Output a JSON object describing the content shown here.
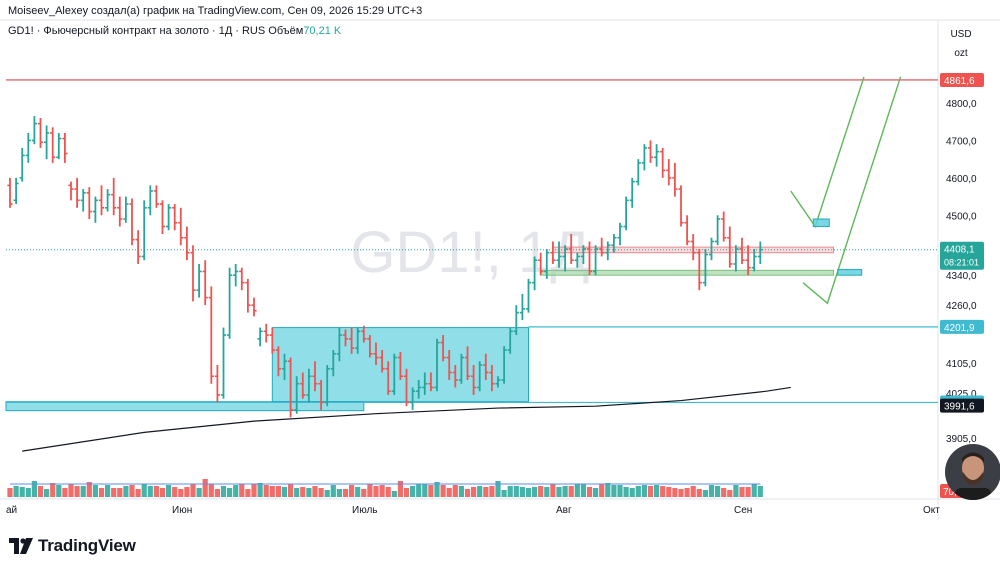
{
  "header": {
    "attribution": "Moiseev_Alexey создал(а) график на TradingView.com, Сен 09, 2026 15:29 UTC+3"
  },
  "legend": {
    "symbol": "GD1!",
    "description": "Фьючерсный контракт на золото",
    "interval": "1Д",
    "exchange": "RUS",
    "volume_label": "Объём",
    "volume_value": "70,21 K"
  },
  "currency": {
    "code": "USD",
    "unit": "ozt"
  },
  "watermark": "GD1!, 1Д",
  "footer": {
    "brand": "TradingView"
  },
  "colors": {
    "up": "#26a69a",
    "down": "#ef5350",
    "zone_cyan": "#5fd0de",
    "zone_pink": "#f8c8cc",
    "zone_green": "#a5d6a7",
    "trend_line": "#5fb858",
    "resistance_line": "#d64550"
  },
  "chart_data": {
    "type": "ohlc",
    "symbol": "GD1!",
    "interval": "1Д",
    "ylim": [
      3860,
      4900
    ],
    "x_labels": [
      "ай",
      "Июн",
      "Июль",
      "Авг",
      "Сен",
      "Окт"
    ],
    "y_ticks": [
      "4800,0",
      "4700,0",
      "4600,0",
      "4500,0",
      "4340,0",
      "4260,0",
      "4105,0",
      "4025,0",
      "3905,0"
    ],
    "price_labels": [
      {
        "text": "4861,6",
        "value": 4861.6,
        "style": "red"
      },
      {
        "text": "4408,1",
        "sub": "08:21:01",
        "value": 4408.1,
        "style": "green"
      },
      {
        "text": "4201,9",
        "value": 4201.9,
        "style": "cyan"
      },
      {
        "text": "4000,0",
        "value": 4000.0,
        "style": "cyan"
      },
      {
        "text": "3991,6",
        "value": 3991.6,
        "style": "black"
      }
    ],
    "volume_label": "70,",
    "bars": [
      [
        4580,
        4600,
        4520,
        4530
      ],
      [
        4540,
        4600,
        4530,
        4585
      ],
      [
        4600,
        4680,
        4590,
        4660
      ],
      [
        4660,
        4720,
        4640,
        4700
      ],
      [
        4700,
        4765,
        4690,
        4745
      ],
      [
        4745,
        4760,
        4680,
        4695
      ],
      [
        4695,
        4740,
        4650,
        4720
      ],
      [
        4720,
        4735,
        4640,
        4655
      ],
      [
        4655,
        4720,
        4650,
        4705
      ],
      [
        4705,
        4720,
        4640,
        4665
      ],
      [
        4580,
        4590,
        4540,
        4570
      ],
      [
        4570,
        4600,
        4520,
        4540
      ],
      [
        4540,
        4570,
        4510,
        4560
      ],
      [
        4560,
        4575,
        4490,
        4510
      ],
      [
        4510,
        4550,
        4480,
        4540
      ],
      [
        4540,
        4580,
        4500,
        4520
      ],
      [
        4520,
        4570,
        4510,
        4555
      ],
      [
        4555,
        4600,
        4500,
        4520
      ],
      [
        4520,
        4550,
        4470,
        4490
      ],
      [
        4490,
        4550,
        4480,
        4530
      ],
      [
        4530,
        4545,
        4420,
        4435
      ],
      [
        4435,
        4460,
        4370,
        4390
      ],
      [
        4390,
        4540,
        4380,
        4520
      ],
      [
        4520,
        4580,
        4500,
        4565
      ],
      [
        4565,
        4580,
        4520,
        4530
      ],
      [
        4530,
        4540,
        4450,
        4470
      ],
      [
        4470,
        4530,
        4460,
        4520
      ],
      [
        4520,
        4530,
        4460,
        4480
      ],
      [
        4480,
        4520,
        4420,
        4440
      ],
      [
        4440,
        4470,
        4380,
        4400
      ],
      [
        4400,
        4420,
        4270,
        4300
      ],
      [
        4300,
        4370,
        4280,
        4350
      ],
      [
        4350,
        4380,
        4260,
        4280
      ],
      [
        4280,
        4310,
        4050,
        4070
      ],
      [
        4070,
        4100,
        4000,
        4020
      ],
      [
        4020,
        4200,
        4010,
        4180
      ],
      [
        4180,
        4360,
        4170,
        4340
      ],
      [
        4340,
        4370,
        4310,
        4350
      ],
      [
        4350,
        4360,
        4300,
        4320
      ],
      [
        4320,
        4330,
        4240,
        4260
      ],
      [
        4260,
        4280,
        4230,
        4245
      ],
      [
        4170,
        4200,
        4150,
        4190
      ],
      [
        4190,
        4210,
        4160,
        4180
      ],
      [
        4180,
        4200,
        4130,
        4140
      ],
      [
        4140,
        4150,
        4070,
        4090
      ],
      [
        4090,
        4130,
        4060,
        4110
      ],
      [
        4110,
        4120,
        3960,
        3980
      ],
      [
        3980,
        4070,
        3970,
        4050
      ],
      [
        4050,
        4080,
        4010,
        4020
      ],
      [
        4020,
        4090,
        4000,
        4070
      ],
      [
        4070,
        4110,
        4030,
        4050
      ],
      [
        4050,
        4060,
        3980,
        4000
      ],
      [
        4000,
        4100,
        3990,
        4090
      ],
      [
        4090,
        4140,
        4070,
        4130
      ],
      [
        4130,
        4200,
        4110,
        4180
      ],
      [
        4180,
        4195,
        4150,
        4170
      ],
      [
        4170,
        4200,
        4130,
        4145
      ],
      [
        4145,
        4200,
        4130,
        4190
      ],
      [
        4190,
        4205,
        4160,
        4170
      ],
      [
        4170,
        4180,
        4120,
        4130
      ],
      [
        4130,
        4160,
        4100,
        4120
      ],
      [
        4120,
        4140,
        4080,
        4090
      ],
      [
        4090,
        4110,
        4020,
        4030
      ],
      [
        4030,
        4130,
        4020,
        4120
      ],
      [
        4120,
        4135,
        4060,
        4070
      ],
      [
        4070,
        4090,
        3990,
        4000
      ],
      [
        4000,
        4040,
        3980,
        4030
      ],
      [
        4030,
        4060,
        4010,
        4040
      ],
      [
        4040,
        4080,
        4020,
        4050
      ],
      [
        4050,
        4080,
        4030,
        4040
      ],
      [
        4040,
        4170,
        4030,
        4160
      ],
      [
        4160,
        4180,
        4110,
        4120
      ],
      [
        4120,
        4140,
        4060,
        4080
      ],
      [
        4080,
        4100,
        4040,
        4060
      ],
      [
        4060,
        4130,
        4050,
        4120
      ],
      [
        4120,
        4150,
        4060,
        4070
      ],
      [
        4070,
        4100,
        4020,
        4040
      ],
      [
        4040,
        4110,
        4030,
        4100
      ],
      [
        4100,
        4130,
        4060,
        4080
      ],
      [
        4080,
        4100,
        4030,
        4050
      ],
      [
        4050,
        4070,
        4040,
        4060
      ],
      [
        4060,
        4150,
        4050,
        4140
      ],
      [
        4140,
        4200,
        4130,
        4190
      ],
      [
        4190,
        4260,
        4180,
        4240
      ],
      [
        4240,
        4290,
        4220,
        4250
      ],
      [
        4250,
        4330,
        4240,
        4320
      ],
      [
        4320,
        4390,
        4300,
        4380
      ],
      [
        4380,
        4400,
        4340,
        4350
      ],
      [
        4350,
        4410,
        4330,
        4400
      ],
      [
        4400,
        4430,
        4370,
        4380
      ],
      [
        4380,
        4430,
        4360,
        4390
      ],
      [
        4390,
        4420,
        4350,
        4410
      ],
      [
        4410,
        4450,
        4370,
        4380
      ],
      [
        4380,
        4400,
        4360,
        4390
      ],
      [
        4390,
        4420,
        4370,
        4410
      ],
      [
        4410,
        4430,
        4340,
        4350
      ],
      [
        4350,
        4420,
        4340,
        4410
      ],
      [
        4410,
        4440,
        4390,
        4400
      ],
      [
        4400,
        4430,
        4380,
        4420
      ],
      [
        4420,
        4450,
        4400,
        4440
      ],
      [
        4440,
        4480,
        4420,
        4470
      ],
      [
        4470,
        4550,
        4460,
        4540
      ],
      [
        4540,
        4600,
        4520,
        4590
      ],
      [
        4590,
        4650,
        4580,
        4640
      ],
      [
        4640,
        4690,
        4620,
        4680
      ],
      [
        4680,
        4700,
        4640,
        4655
      ],
      [
        4655,
        4690,
        4630,
        4670
      ],
      [
        4670,
        4680,
        4600,
        4620
      ],
      [
        4620,
        4650,
        4580,
        4600
      ],
      [
        4600,
        4640,
        4550,
        4570
      ],
      [
        4570,
        4580,
        4470,
        4480
      ],
      [
        4480,
        4500,
        4420,
        4430
      ],
      [
        4430,
        4450,
        4380,
        4400
      ],
      [
        4400,
        4410,
        4300,
        4320
      ],
      [
        4320,
        4410,
        4310,
        4395
      ],
      [
        4395,
        4440,
        4380,
        4430
      ],
      [
        4430,
        4500,
        4420,
        4490
      ],
      [
        4490,
        4510,
        4430,
        4440
      ],
      [
        4440,
        4470,
        4360,
        4370
      ],
      [
        4370,
        4420,
        4350,
        4410
      ],
      [
        4410,
        4440,
        4370,
        4380
      ],
      [
        4380,
        4420,
        4340,
        4360
      ],
      [
        4360,
        4410,
        4350,
        4390
      ],
      [
        4390,
        4430,
        4370,
        4408
      ]
    ],
    "moving_average": [
      [
        2,
        3870
      ],
      [
        22,
        3920
      ],
      [
        40,
        3950
      ],
      [
        60,
        3970
      ],
      [
        80,
        3985
      ],
      [
        96,
        3990
      ],
      [
        110,
        4005
      ],
      [
        124,
        4030
      ],
      [
        128,
        4040
      ]
    ],
    "zones": [
      {
        "name": "consolidation",
        "color": "cyan",
        "from_bar": 43,
        "to_bar": 85,
        "y1": 4002,
        "y2": 4200
      },
      {
        "name": "support-bar",
        "color": "cyan",
        "from_bar": -1,
        "to_bar": 58,
        "y1": 3978,
        "y2": 4002
      },
      {
        "name": "resistance-zone",
        "color": "pink",
        "from_bar": 89,
        "to_bar": 135,
        "y1": 4400,
        "y2": 4415
      },
      {
        "name": "support-zone",
        "color": "green",
        "from_bar": 87,
        "to_bar": 135,
        "y1": 4340,
        "y2": 4353
      }
    ],
    "projections": [
      {
        "points": [
          [
            128,
            4565
          ],
          [
            132,
            4470
          ],
          [
            140,
            4870
          ]
        ]
      },
      {
        "points": [
          [
            130,
            4320
          ],
          [
            134,
            4265
          ],
          [
            146,
            4870
          ]
        ]
      }
    ],
    "projection_boxes": [
      {
        "at_bar": 133,
        "y1": 4470,
        "y2": 4490
      },
      {
        "at_bar": 137,
        "y1": 4340,
        "y2": 4355
      }
    ],
    "horizontal_lines": [
      {
        "value": 4861.6,
        "style": "red"
      },
      {
        "value": 4201.9,
        "style": "cyan"
      },
      {
        "value": 4000.0,
        "style": "cyan"
      }
    ]
  }
}
